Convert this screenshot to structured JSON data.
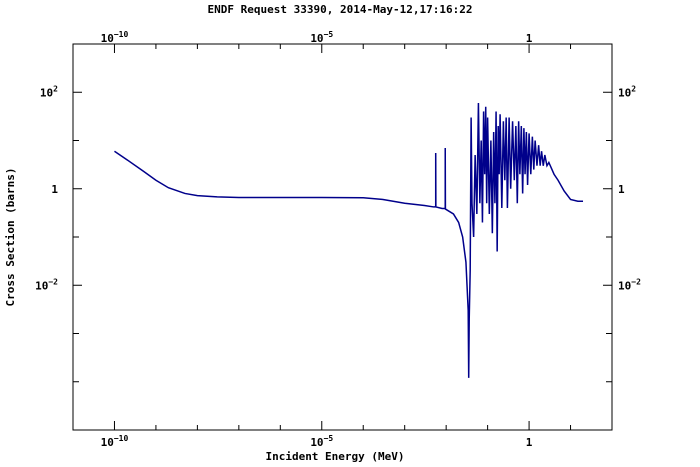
{
  "chart_data": {
    "type": "line",
    "title": "ENDF Request 33390, 2014-May-12,17:16:22",
    "xlabel": "Incident Energy (MeV)",
    "ylabel": "Cross Section (barns)",
    "xscale": "log",
    "yscale": "log",
    "xlim": [
      1e-11,
      100
    ],
    "ylim": [
      1e-05,
      1000
    ],
    "grid": false,
    "x_ticks_bottom": [
      {
        "base": "10",
        "exp": "−10",
        "value": 1e-10
      },
      {
        "base": "10",
        "exp": "−5",
        "value": 1e-05
      },
      {
        "base": "1",
        "exp": "",
        "value": 1
      }
    ],
    "x_ticks_top": [
      {
        "base": "10",
        "exp": "−10",
        "value": 1e-10
      },
      {
        "base": "10",
        "exp": "−5",
        "value": 1e-05
      },
      {
        "base": "1",
        "exp": "",
        "value": 1
      }
    ],
    "y_ticks_left": [
      {
        "base": "10",
        "exp": "2",
        "value": 100
      },
      {
        "base": "1",
        "exp": "",
        "value": 1
      },
      {
        "base": "10",
        "exp": "−2",
        "value": 0.01
      }
    ],
    "y_ticks_right": [
      {
        "base": "10",
        "exp": "2",
        "value": 100
      },
      {
        "base": "1",
        "exp": "",
        "value": 1
      },
      {
        "base": "10",
        "exp": "−2",
        "value": 0.01
      }
    ],
    "series": [
      {
        "color": "#00008b",
        "points": [
          [
            1e-10,
            6.0
          ],
          [
            2e-10,
            4.0
          ],
          [
            5e-10,
            2.3
          ],
          [
            1e-09,
            1.5
          ],
          [
            2e-09,
            1.05
          ],
          [
            5e-09,
            0.8
          ],
          [
            1e-08,
            0.72
          ],
          [
            3e-08,
            0.68
          ],
          [
            1e-07,
            0.66
          ],
          [
            1e-06,
            0.66
          ],
          [
            1e-05,
            0.66
          ],
          [
            0.0001,
            0.65
          ],
          [
            0.0003,
            0.6
          ],
          [
            0.001,
            0.5
          ],
          [
            0.003,
            0.45
          ],
          [
            0.005,
            0.42
          ],
          [
            0.0056,
            0.42
          ],
          [
            0.0056,
            5.5
          ],
          [
            0.00565,
            0.42
          ],
          [
            0.008,
            0.39
          ],
          [
            0.0095,
            0.39
          ],
          [
            0.0095,
            7.0
          ],
          [
            0.0096,
            0.38
          ],
          [
            0.015,
            0.3
          ],
          [
            0.02,
            0.2
          ],
          [
            0.025,
            0.1
          ],
          [
            0.03,
            0.03
          ],
          [
            0.034,
            0.003
          ],
          [
            0.035,
            0.00012
          ],
          [
            0.036,
            0.002
          ],
          [
            0.038,
            0.02
          ],
          [
            0.04,
            30
          ],
          [
            0.042,
            0.5
          ],
          [
            0.046,
            0.1
          ],
          [
            0.05,
            5
          ],
          [
            0.055,
            0.3
          ],
          [
            0.06,
            60
          ],
          [
            0.065,
            0.5
          ],
          [
            0.07,
            10
          ],
          [
            0.075,
            0.2
          ],
          [
            0.08,
            40
          ],
          [
            0.085,
            2
          ],
          [
            0.09,
            50
          ],
          [
            0.095,
            0.5
          ],
          [
            0.1,
            30
          ],
          [
            0.11,
            0.3
          ],
          [
            0.12,
            10
          ],
          [
            0.13,
            0.12
          ],
          [
            0.14,
            15
          ],
          [
            0.15,
            0.5
          ],
          [
            0.16,
            40
          ],
          [
            0.17,
            0.05
          ],
          [
            0.18,
            20
          ],
          [
            0.19,
            2
          ],
          [
            0.2,
            35
          ],
          [
            0.22,
            0.4
          ],
          [
            0.24,
            25
          ],
          [
            0.26,
            1.5
          ],
          [
            0.28,
            30
          ],
          [
            0.3,
            0.4
          ],
          [
            0.33,
            30
          ],
          [
            0.36,
            1
          ],
          [
            0.4,
            25
          ],
          [
            0.44,
            1.5
          ],
          [
            0.48,
            20
          ],
          [
            0.52,
            0.5
          ],
          [
            0.56,
            25
          ],
          [
            0.6,
            2
          ],
          [
            0.65,
            20
          ],
          [
            0.7,
            0.8
          ],
          [
            0.75,
            18
          ],
          [
            0.8,
            2
          ],
          [
            0.86,
            15
          ],
          [
            0.92,
            1.2
          ],
          [
            1.0,
            14
          ],
          [
            1.1,
            2
          ],
          [
            1.2,
            12
          ],
          [
            1.3,
            2.5
          ],
          [
            1.4,
            10
          ],
          [
            1.55,
            3
          ],
          [
            1.7,
            8
          ],
          [
            1.85,
            3
          ],
          [
            2.0,
            6
          ],
          [
            2.2,
            3
          ],
          [
            2.4,
            5
          ],
          [
            2.7,
            3
          ],
          [
            3.0,
            3.5
          ],
          [
            4.0,
            2.0
          ],
          [
            5.0,
            1.5
          ],
          [
            7.0,
            0.9
          ],
          [
            10.0,
            0.6
          ],
          [
            15.0,
            0.55
          ],
          [
            20.0,
            0.55
          ]
        ]
      }
    ]
  }
}
